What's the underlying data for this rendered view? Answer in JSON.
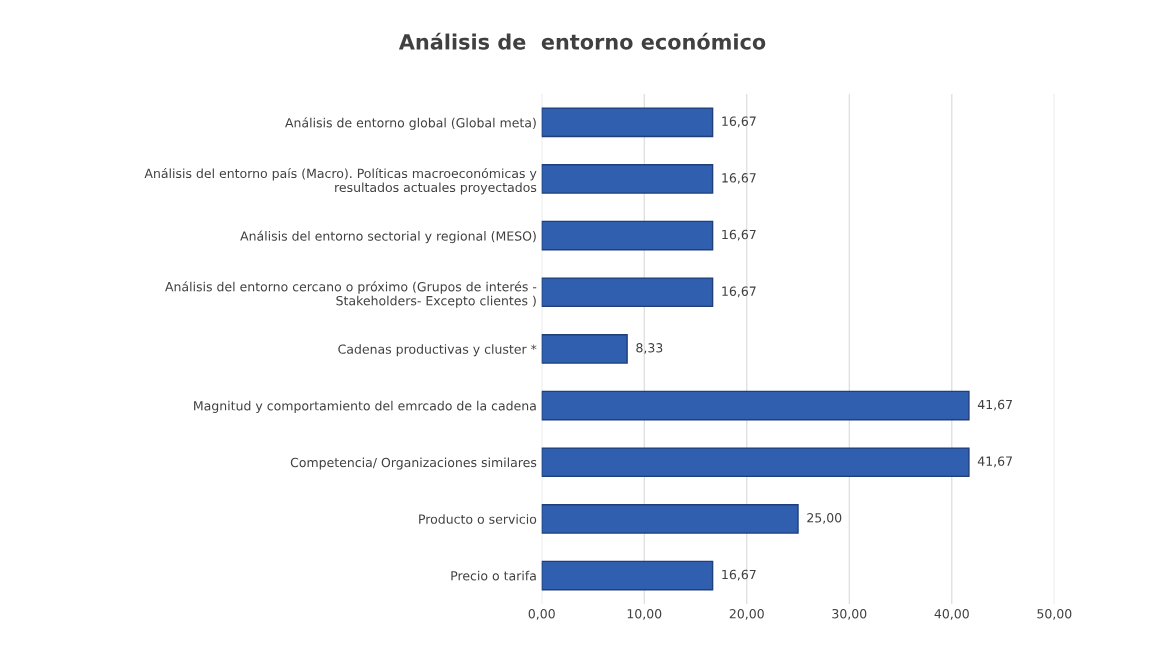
{
  "chart_data": {
    "type": "bar",
    "orientation": "horizontal",
    "title": "Análisis de  entorno económico",
    "categories": [
      "Análisis de entorno global (Global meta)",
      "Análisis del entorno país (Macro). Políticas macroeconómicas y\nresultados actuales proyectados",
      "Análisis del entorno sectorial y regional (MESO)",
      "Análisis del entorno cercano o próximo (Grupos de interés -\nStakeholders- Excepto clientes )",
      "Cadenas productivas y cluster *",
      "Magnitud y comportamiento del emrcado de la cadena",
      "Competencia/ Organizaciones similares",
      "Producto o servicio",
      "Precio o tarifa"
    ],
    "values": [
      16.67,
      16.67,
      16.67,
      16.67,
      8.33,
      41.67,
      41.67,
      25.0,
      16.67
    ],
    "value_labels": [
      "16,67",
      "16,67",
      "16,67",
      "16,67",
      "8,33",
      "41,67",
      "41,67",
      "25,00",
      "16,67"
    ],
    "color": "#2f5fae",
    "xlim": [
      0,
      50
    ],
    "xticks": [
      {
        "value": 0,
        "label": "0,00"
      },
      {
        "value": 10,
        "label": "10,00"
      },
      {
        "value": 20,
        "label": "20,00"
      },
      {
        "value": 30,
        "label": "30,00"
      },
      {
        "value": 40,
        "label": "40,00"
      },
      {
        "value": 50,
        "label": "50,00"
      }
    ],
    "grid": "x"
  }
}
